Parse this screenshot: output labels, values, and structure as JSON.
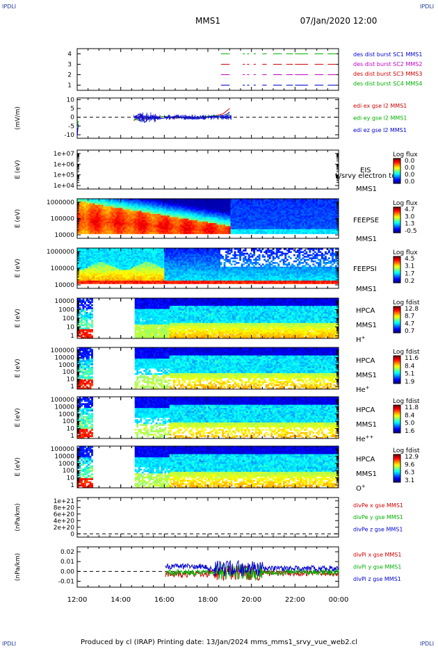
{
  "header": {
    "spacecraft": "MMS1",
    "date_time": "07/Jan/2020 12:00",
    "corner_tag": "IPDLI"
  },
  "footer": {
    "text": "Produced by cl (IRAP)   Printing date: 13/Jan/2024   mms_mms1_srvy_vue_web2.cl"
  },
  "chart_data": [
    {
      "type": "line",
      "panel": "des_dist_burst",
      "yticks": [
        "4",
        "3",
        "2",
        "1"
      ],
      "ylim": [
        0.5,
        4.5
      ],
      "legend": [
        "des dist burst SC1 MMS1",
        "des dist burst SC2 MMS2",
        "des dist burst SC3 MMS3",
        "des dist burst SC4 MMS4"
      ],
      "legend_colors": [
        "#0000d0",
        "#c000c0",
        "#d00000",
        "#00b000"
      ],
      "series": [
        {
          "level": 4,
          "color": "#00b000",
          "segments": [
            [
              18.6,
              19.0
            ],
            [
              19.6,
              19.7
            ],
            [
              19.8,
              19.9
            ],
            [
              20.1,
              20.2
            ],
            [
              20.5,
              20.7
            ],
            [
              21.0,
              21.4
            ],
            [
              21.6,
              21.9
            ],
            [
              22.0,
              22.6
            ],
            [
              22.9,
              23.3
            ],
            [
              23.5,
              23.9
            ]
          ]
        },
        {
          "level": 3,
          "color": "#d00000",
          "segments": [
            [
              18.6,
              19.0
            ],
            [
              19.6,
              19.7
            ],
            [
              19.8,
              19.9
            ],
            [
              20.1,
              20.2
            ],
            [
              20.5,
              20.7
            ],
            [
              21.0,
              21.4
            ],
            [
              21.6,
              21.9
            ],
            [
              22.0,
              22.6
            ],
            [
              22.9,
              23.3
            ],
            [
              23.5,
              23.9
            ]
          ]
        },
        {
          "level": 2,
          "color": "#c000c0",
          "segments": [
            [
              18.6,
              19.0
            ],
            [
              19.6,
              19.7
            ],
            [
              19.8,
              19.9
            ],
            [
              20.1,
              20.2
            ],
            [
              20.5,
              20.7
            ],
            [
              21.0,
              21.4
            ],
            [
              21.6,
              21.9
            ],
            [
              22.0,
              22.6
            ],
            [
              22.9,
              23.3
            ],
            [
              23.5,
              23.9
            ]
          ]
        },
        {
          "level": 1,
          "color": "#0000d0",
          "segments": [
            [
              18.6,
              19.0
            ],
            [
              19.6,
              19.7
            ],
            [
              19.8,
              19.9
            ],
            [
              20.1,
              20.2
            ],
            [
              20.5,
              20.7
            ],
            [
              21.0,
              21.4
            ],
            [
              21.6,
              21.9
            ],
            [
              22.0,
              22.6
            ],
            [
              22.9,
              23.3
            ],
            [
              23.5,
              23.9
            ]
          ]
        }
      ]
    },
    {
      "type": "line",
      "panel": "edi_e_gse",
      "ylabel": "(mV/m)",
      "yticks": [
        "10",
        "5",
        "0",
        "-5",
        "-10"
      ],
      "ylim": [
        -12,
        11
      ],
      "legend": [
        "edi ex gse l2 MMS1",
        "edi ey gse l2 MMS1",
        "edi ez gse l2 MMS1"
      ],
      "legend_colors": [
        "#d00000",
        "#00b000",
        "#0000d0"
      ],
      "x": [
        12.0,
        12.05,
        14.3,
        14.6,
        14.9,
        15.1,
        15.4,
        15.7,
        16.0,
        16.5,
        17.0,
        17.5,
        18.0,
        18.4,
        18.7,
        18.9,
        19.0
      ],
      "series": [
        {
          "name": "edi ex gse l2 MMS1",
          "color": "#d00000",
          "values": [
            null,
            null,
            null,
            -2,
            1,
            -1,
            0,
            0,
            0.5,
            -0.5,
            0,
            0,
            0.3,
            1,
            2,
            4,
            5
          ]
        },
        {
          "name": "edi ey gse l2 MMS1",
          "color": "#00b000",
          "values": [
            -6,
            -2,
            null,
            -1,
            -2,
            0,
            -1,
            -0.5,
            0.5,
            0,
            -0.5,
            0,
            0.5,
            1,
            -0.5,
            1,
            2
          ]
        },
        {
          "name": "edi ez gse l2 MMS1",
          "color": "#0000d0",
          "values": [
            -11,
            -4,
            null,
            0,
            2,
            -3,
            1,
            -1,
            -0.5,
            0.5,
            -0.5,
            -1,
            0,
            0.5,
            1,
            2,
            3
          ]
        }
      ]
    },
    {
      "type": "heatmap",
      "panel": "EIS",
      "ylabel": "E (eV)",
      "yticks": [
        "1e+07",
        "1e+06",
        "1e+05",
        "1e+04"
      ],
      "label_lines": [
        "EIS",
        "MMS1"
      ],
      "overlay_label": "L/srvy electron to",
      "colorbar_title": "Log flux",
      "colorbar_ticks": [
        "0.0",
        "0.0",
        "0.0",
        "0.0"
      ],
      "data_note": ""
    },
    {
      "type": "heatmap",
      "panel": "FEEPSE",
      "ylabel": "E (eV)",
      "yticks": [
        "1000000",
        "100000",
        "10000"
      ],
      "label_lines": [
        "FEEPSE",
        "MMS1"
      ],
      "colorbar_title": "Log flux",
      "colorbar_ticks": [
        "4.7",
        "3.0",
        "1.3",
        "-0.5"
      ]
    },
    {
      "type": "heatmap",
      "panel": "FEEPSI",
      "ylabel": "E (eV)",
      "yticks": [
        "1000000",
        "100000",
        "10000"
      ],
      "label_lines": [
        "FEEPSI",
        "MMS1"
      ],
      "colorbar_title": "Log flux",
      "colorbar_ticks": [
        "4.5",
        "3.1",
        "1.7",
        "0.2"
      ]
    },
    {
      "type": "heatmap",
      "panel": "HPCA_H",
      "ylabel": "E (eV)",
      "yticks": [
        "10000",
        "1000",
        "100",
        "10",
        "1"
      ],
      "label_lines": [
        "HPCA",
        "MMS1"
      ],
      "species": "H",
      "charge": "+",
      "colorbar_title": "Log fdist",
      "colorbar_ticks": [
        "12.8",
        "8.7",
        "4.7",
        "0.7"
      ]
    },
    {
      "type": "heatmap",
      "panel": "HPCA_He",
      "ylabel": "E (eV)",
      "yticks": [
        "100000",
        "10000",
        "1000",
        "100",
        "10",
        "1"
      ],
      "label_lines": [
        "HPCA",
        "MMS1"
      ],
      "species": "He",
      "charge": "+",
      "colorbar_title": "Log fdist",
      "colorbar_ticks": [
        "11.6",
        "8.4",
        "5.1",
        "1.9"
      ]
    },
    {
      "type": "heatmap",
      "panel": "HPCA_He2",
      "ylabel": "E (eV)",
      "yticks": [
        "100000",
        "10000",
        "1000",
        "100",
        "10",
        "1"
      ],
      "label_lines": [
        "HPCA",
        "MMS1"
      ],
      "species": "He",
      "charge": "++",
      "colorbar_title": "Log fdist",
      "colorbar_ticks": [
        "11.8",
        "8.4",
        "5.0",
        "1.6"
      ]
    },
    {
      "type": "heatmap",
      "panel": "HPCA_O",
      "ylabel": "E (eV)",
      "yticks": [
        "100000",
        "10000",
        "1000",
        "100",
        "10",
        "1"
      ],
      "label_lines": [
        "HPCA",
        "MMS1"
      ],
      "species": "O",
      "charge": "+",
      "colorbar_title": "Log fdist",
      "colorbar_ticks": [
        "12.9",
        "9.6",
        "6.3",
        "3.1"
      ]
    },
    {
      "type": "line",
      "panel": "divPe",
      "ylabel": "(nPa/km)",
      "yticks": [
        "1e+21",
        "8e+20",
        "6e+20",
        "4e+20",
        "2e+20",
        "0"
      ],
      "ylim": [
        -1e+20,
        1.1e+21
      ],
      "legend": [
        "divPe x gse MMS1",
        "divPe y gse MMS1",
        "divPe z gse MMS1"
      ],
      "legend_colors": [
        "#d00000",
        "#00b000",
        "#0000d0"
      ]
    },
    {
      "type": "line",
      "panel": "divPi",
      "ylabel": "(nPa/km)",
      "yticks": [
        "0.02",
        "0.01",
        "0.00",
        "-0.01"
      ],
      "ylim": [
        -0.016,
        0.025
      ],
      "legend": [
        "divPi x gse MMS1",
        "divPi y gse MMS1",
        "divPi z gse MMS1"
      ],
      "legend_colors": [
        "#d00000",
        "#00b000",
        "#0000d0"
      ],
      "x_range": [
        16.05,
        24.0
      ]
    }
  ],
  "xaxis": {
    "ticks": [
      "12:00",
      "14:00",
      "16:00",
      "18:00",
      "20:00",
      "22:00",
      "00:00"
    ],
    "tick_hours": [
      12,
      14,
      16,
      18,
      20,
      22,
      24
    ],
    "range_hours": [
      12,
      24
    ]
  }
}
